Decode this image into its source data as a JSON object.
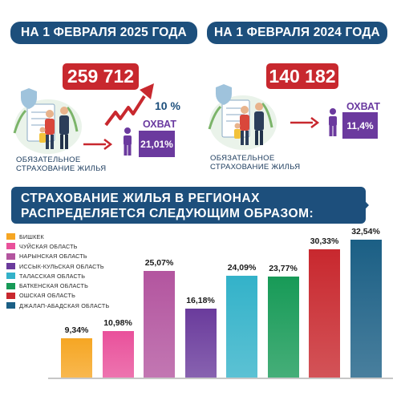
{
  "header": {
    "left_title": "НА 1 ФЕВРАЛЯ 2025 ГОДА",
    "right_title": "НА 1 ФЕВРАЛЯ 2024 ГОДА"
  },
  "left_panel": {
    "count": "259 712",
    "growth": "10 %",
    "coverage_label": "ОХВАТ",
    "coverage_value": "21,01%",
    "caption_line1": "ОБЯЗАТЕЛЬНОЕ",
    "caption_line2": "СТРАХОВАНИЕ ЖИЛЬЯ"
  },
  "right_panel": {
    "count": "140 182",
    "coverage_label": "ОХВАТ",
    "coverage_value": "11,4%",
    "caption_line1": "ОБЯЗАТЕЛЬНОЕ",
    "caption_line2": "СТРАХОВАНИЕ ЖИЛЬЯ"
  },
  "banner": {
    "line1": "СТРАХОВАНИЕ ЖИЛЬЯ В РЕГИОНАХ",
    "line2": "РАСПРЕДЕЛЯЕТСЯ СЛЕДУЮЩИМ ОБРАЗОМ:"
  },
  "colors": {
    "navy": "#1d4f7c",
    "red": "#c8282e",
    "purple": "#6b3a9e"
  },
  "chart_data": {
    "type": "bar",
    "categories": [
      "БИШКЕК",
      "ЧУЙСКАЯ ОБЛАСТЬ",
      "НАРЫНСКАЯ ОБЛАСТЬ",
      "ИССЫК-КУЛЬСКАЯ ОБЛАСТЬ",
      "ТАЛАССКАЯ ОБЛАСТЬ",
      "БАТКЕНСКАЯ ОБЛАСТЬ",
      "ОШСКАЯ ОБЛАСТЬ",
      "ДЖАЛАП-АБАДСКАЯ ОБЛАСТЬ"
    ],
    "values": [
      9.34,
      10.98,
      25.07,
      16.18,
      24.09,
      23.77,
      30.33,
      32.54
    ],
    "labels": [
      "9,34%",
      "10,98%",
      "25,07%",
      "16,18%",
      "24,09%",
      "23,77%",
      "30,33%",
      "32,54%"
    ],
    "colors": [
      "#f6a623",
      "#e9519b",
      "#b3559f",
      "#6a3b9c",
      "#33b2c9",
      "#179a57",
      "#c8282e",
      "#1b5f85"
    ],
    "ylim": [
      0,
      32.54
    ],
    "legend_position": "top-left"
  }
}
